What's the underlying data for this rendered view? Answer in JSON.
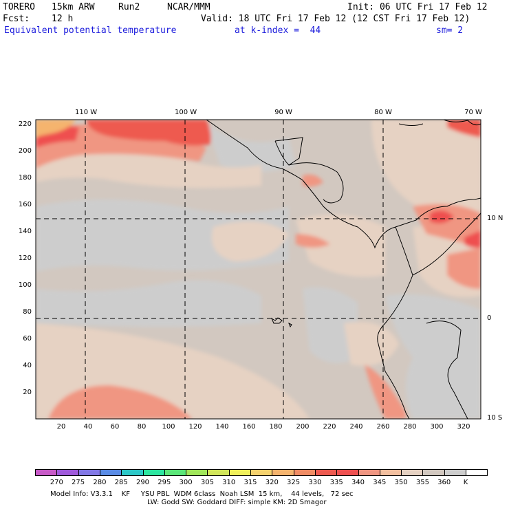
{
  "header": {
    "model": "TORERO",
    "resolution": "15km ARW",
    "run": "Run2",
    "org": "NCAR/MMM",
    "init": "Init: 06 UTC Fri 17 Feb 12",
    "fcst_label": "Fcst:",
    "fcst_value": "12 h",
    "valid": "Valid: 18 UTC Fri 17 Feb 12 (12 CST Fri 17 Feb 12)",
    "field": "Equivalent potential temperature",
    "level": "at k-index =  44",
    "smooth": "sm= 2"
  },
  "map": {
    "top_lon_labels": [
      "110 W",
      "100 W",
      "90 W",
      "80 W",
      "70 W"
    ],
    "right_lat_labels": [
      "10 N",
      "0",
      "10 S"
    ],
    "y_ticks": [
      "220",
      "200",
      "180",
      "160",
      "140",
      "120",
      "100",
      "80",
      "60",
      "40",
      "20"
    ],
    "x_ticks": [
      "20",
      "40",
      "60",
      "80",
      "100",
      "120",
      "140",
      "160",
      "180",
      "200",
      "220",
      "240",
      "260",
      "280",
      "300",
      "320"
    ]
  },
  "colorbar": {
    "colors": [
      "#c85ac8",
      "#a05adc",
      "#8278e6",
      "#5a8ce6",
      "#2cc8c8",
      "#2ce6a0",
      "#5ae678",
      "#a0e65a",
      "#d2e65a",
      "#f0f05a",
      "#f5d26e",
      "#f5b46e",
      "#f08c64",
      "#ee5a50",
      "#ef5050",
      "#f09682",
      "#f3c0a0",
      "#e6d2c3",
      "#d2c8c0",
      "#cdcdcd",
      "#ffffff"
    ],
    "labels": [
      "270",
      "275",
      "280",
      "285",
      "290",
      "295",
      "300",
      "305",
      "310",
      "315",
      "320",
      "325",
      "330",
      "335",
      "340",
      "345",
      "350",
      "355",
      "360",
      "K"
    ]
  },
  "footer": {
    "line1": "Model Info: V3.3.1    KF     YSU PBL  WDM 6class  Noah LSM  15 km,    44 levels,   72 sec",
    "line2": "LW: Godd SW: Goddard DIFF: simple KM: 2D Smagor"
  }
}
